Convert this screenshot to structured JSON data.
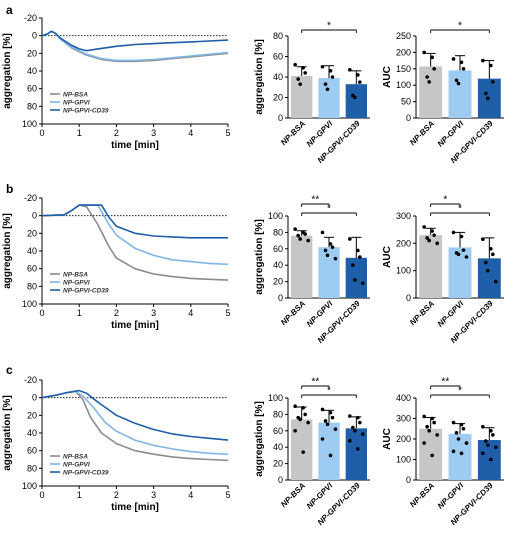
{
  "colors": {
    "bsa": "#8c8c8c",
    "gpvi": "#7fb6e8",
    "cd39": "#1f5ea8",
    "bar_bsa": "#c6c6c6",
    "bar_gpvi": "#9ecbf2",
    "bar_cd39": "#1f5ea8"
  },
  "chart_data": [
    {
      "panel": "a",
      "type": "line",
      "xlabel": "time [min]",
      "ylabel": "aggregation [%]",
      "xlim": [
        0,
        5
      ],
      "ylim": [
        -20,
        100
      ],
      "y_inverted": true,
      "xticks": [
        "0",
        "1",
        "2",
        "3",
        "4",
        "5"
      ],
      "yticks": [
        "-20",
        "0",
        "20",
        "40",
        "60",
        "80",
        "100"
      ],
      "legend": [
        "NP-BSA",
        "NP-GPVI",
        "NP-GPVI-CD39"
      ],
      "series": [
        {
          "name": "NP-BSA",
          "x": [
            0,
            0.15,
            0.25,
            0.35,
            0.5,
            0.8,
            1.2,
            1.6,
            2.0,
            2.5,
            3.0,
            3.5,
            4.0,
            4.5,
            5.0
          ],
          "y": [
            0,
            -2,
            -5,
            -3,
            4,
            14,
            22,
            27,
            29,
            29,
            28,
            26,
            24,
            22,
            20
          ]
        },
        {
          "name": "NP-GPVI",
          "x": [
            0,
            0.15,
            0.25,
            0.35,
            0.5,
            0.8,
            1.2,
            1.6,
            2.0,
            2.5,
            3.0,
            3.5,
            4.0,
            4.5,
            5.0
          ],
          "y": [
            0,
            -2,
            -5,
            -3,
            4,
            13,
            21,
            26,
            28,
            28,
            27,
            25,
            23,
            21,
            19
          ]
        },
        {
          "name": "NP-GPVI-CD39",
          "x": [
            0,
            0.15,
            0.25,
            0.35,
            0.5,
            0.8,
            1.0,
            1.2,
            1.5,
            2.0,
            2.5,
            3.0,
            3.5,
            4.0,
            4.5,
            5.0
          ],
          "y": [
            0,
            -2,
            -5,
            -3,
            3,
            11,
            15,
            17,
            15,
            12,
            10,
            9,
            8,
            7,
            6,
            5
          ]
        }
      ]
    },
    {
      "panel": "a",
      "type": "bar",
      "ylabel": "aggregation [%]",
      "ylim": [
        0,
        80
      ],
      "yticks": [
        "0",
        "20",
        "40",
        "60",
        "80"
      ],
      "categories": [
        "NP-BSA",
        "NP-GPVI",
        "NP-GPVI-CD39"
      ],
      "values": [
        41,
        39,
        33
      ],
      "errors": [
        9,
        12,
        13
      ],
      "points": [
        [
          52,
          49,
          44,
          38,
          33
        ],
        [
          50,
          46,
          40,
          33,
          28
        ],
        [
          47,
          42,
          35,
          22,
          20
        ]
      ],
      "significance": [
        {
          "from": 0,
          "to": 2,
          "label": "*"
        }
      ]
    },
    {
      "panel": "a",
      "type": "bar",
      "ylabel": "AUC",
      "ylim": [
        0,
        250
      ],
      "yticks": [
        "0",
        "50",
        "100",
        "150",
        "200",
        "250"
      ],
      "categories": [
        "NP-BSA",
        "NP-GPVI",
        "NP-GPVI-CD39"
      ],
      "values": [
        157,
        145,
        120
      ],
      "errors": [
        40,
        45,
        55
      ],
      "points": [
        [
          200,
          185,
          150,
          125,
          110
        ],
        [
          180,
          170,
          150,
          115,
          105
        ],
        [
          175,
          160,
          110,
          75,
          60
        ]
      ],
      "significance": [
        {
          "from": 0,
          "to": 2,
          "label": "*"
        }
      ]
    },
    {
      "panel": "b",
      "type": "line",
      "xlabel": "time [min]",
      "ylabel": "aggregation [%]",
      "xlim": [
        0,
        5
      ],
      "ylim": [
        -20,
        100
      ],
      "y_inverted": true,
      "xticks": [
        "0",
        "1",
        "2",
        "3",
        "4",
        "5"
      ],
      "yticks": [
        "-20",
        "0",
        "20",
        "40",
        "60",
        "80",
        "100"
      ],
      "legend": [
        "NP-BSA",
        "NP-GPVI",
        "NP-GPVI-CD39"
      ],
      "series": [
        {
          "name": "NP-BSA",
          "x": [
            0,
            0.6,
            0.8,
            1.0,
            1.2,
            1.5,
            1.8,
            2.0,
            2.5,
            3.0,
            3.5,
            4.0,
            4.5,
            5.0
          ],
          "y": [
            0,
            -1,
            -6,
            -12,
            -10,
            10,
            35,
            48,
            60,
            66,
            69,
            71,
            72,
            73
          ]
        },
        {
          "name": "NP-GPVI",
          "x": [
            0,
            0.6,
            0.8,
            1.0,
            1.5,
            1.8,
            2.0,
            2.5,
            3.0,
            3.5,
            4.0,
            4.5,
            5.0
          ],
          "y": [
            0,
            -1,
            -6,
            -12,
            -12,
            10,
            22,
            37,
            45,
            50,
            52,
            54,
            55
          ]
        },
        {
          "name": "NP-GPVI-CD39",
          "x": [
            0,
            0.6,
            0.8,
            1.0,
            1.6,
            1.8,
            2.0,
            2.5,
            3.0,
            3.5,
            4.0,
            4.5,
            5.0
          ],
          "y": [
            0,
            -1,
            -6,
            -12,
            -12,
            2,
            12,
            20,
            23,
            24,
            25,
            25,
            25
          ]
        }
      ]
    },
    {
      "panel": "b",
      "type": "bar",
      "ylabel": "aggregation [%]",
      "ylim": [
        0,
        100
      ],
      "yticks": [
        "0",
        "20",
        "40",
        "60",
        "80",
        "100"
      ],
      "categories": [
        "NP-BSA",
        "NP-GPVI",
        "NP-GPVI-CD39"
      ],
      "values": [
        76,
        62,
        49
      ],
      "errors": [
        6,
        12,
        25
      ],
      "points": [
        [
          84,
          80,
          78,
          76,
          72,
          70
        ],
        [
          80,
          66,
          62,
          58,
          52,
          48
        ],
        [
          72,
          58,
          50,
          40,
          22,
          18
        ]
      ],
      "significance": [
        {
          "from": 0,
          "to": 1,
          "label": "**"
        },
        {
          "from": 0,
          "to": 2,
          "label": "*"
        }
      ]
    },
    {
      "panel": "b",
      "type": "bar",
      "ylabel": "AUC",
      "ylim": [
        0,
        300
      ],
      "yticks": [
        "0",
        "100",
        "200",
        "300"
      ],
      "categories": [
        "NP-BSA",
        "NP-GPVI",
        "NP-GPVI-CD39"
      ],
      "values": [
        230,
        185,
        145
      ],
      "errors": [
        25,
        55,
        75
      ],
      "points": [
        [
          260,
          245,
          230,
          220,
          210,
          200
        ],
        [
          240,
          225,
          175,
          165,
          160,
          150
        ],
        [
          215,
          180,
          160,
          130,
          100,
          60
        ]
      ],
      "significance": [
        {
          "from": 0,
          "to": 1,
          "label": "*"
        },
        {
          "from": 0,
          "to": 2,
          "label": "*"
        }
      ]
    },
    {
      "panel": "c",
      "type": "line",
      "xlabel": "time [min]",
      "ylabel": "aggregation [%]",
      "xlim": [
        0,
        5
      ],
      "ylim": [
        -20,
        100
      ],
      "y_inverted": true,
      "xticks": [
        "0",
        "1",
        "2",
        "3",
        "4",
        "5"
      ],
      "yticks": [
        "-20",
        "0",
        "20",
        "40",
        "60",
        "80",
        "100"
      ],
      "legend": [
        "NP-BSA",
        "NP-GPVI",
        "NP-GPVI-CD39"
      ],
      "series": [
        {
          "name": "NP-BSA",
          "x": [
            0,
            0.4,
            0.7,
            0.9,
            1.1,
            1.3,
            1.6,
            2.0,
            2.5,
            3.0,
            3.5,
            4.0,
            4.5,
            5.0
          ],
          "y": [
            0,
            -3,
            -6,
            -7,
            2,
            22,
            40,
            52,
            60,
            64,
            67,
            69,
            70,
            71
          ]
        },
        {
          "name": "NP-GPVI",
          "x": [
            0,
            0.4,
            0.7,
            0.9,
            1.1,
            1.4,
            1.7,
            2.0,
            2.5,
            3.0,
            3.5,
            4.0,
            4.5,
            5.0
          ],
          "y": [
            0,
            -3,
            -6,
            -7,
            -2,
            12,
            28,
            38,
            48,
            54,
            58,
            61,
            63,
            64
          ]
        },
        {
          "name": "NP-GPVI-CD39",
          "x": [
            0,
            0.4,
            0.7,
            1.0,
            1.2,
            1.5,
            1.8,
            2.0,
            2.5,
            3.0,
            3.5,
            4.0,
            4.5,
            5.0
          ],
          "y": [
            0,
            -3,
            -6,
            -8,
            -5,
            5,
            14,
            20,
            29,
            36,
            41,
            44,
            46,
            48
          ]
        }
      ]
    },
    {
      "panel": "c",
      "type": "bar",
      "ylabel": "aggregation [%]",
      "ylim": [
        0,
        100
      ],
      "yticks": [
        "0",
        "20",
        "40",
        "60",
        "80",
        "100"
      ],
      "categories": [
        "NP-BSA",
        "NP-GPVI",
        "NP-GPVI-CD39"
      ],
      "values": [
        74,
        70,
        63
      ],
      "errors": [
        15,
        15,
        14
      ],
      "points": [
        [
          90,
          88,
          80,
          76,
          74,
          70,
          60,
          34
        ],
        [
          86,
          82,
          76,
          72,
          68,
          62,
          50,
          30
        ],
        [
          78,
          76,
          70,
          64,
          60,
          56,
          48,
          38
        ]
      ],
      "significance": [
        {
          "from": 0,
          "to": 1,
          "label": "**"
        },
        {
          "from": 0,
          "to": 2,
          "label": "*"
        }
      ]
    },
    {
      "panel": "c",
      "type": "bar",
      "ylabel": "AUC",
      "ylim": [
        0,
        400
      ],
      "yticks": [
        "0",
        "100",
        "200",
        "300",
        "400"
      ],
      "categories": [
        "NP-BSA",
        "NP-GPVI",
        "NP-GPVI-CD39"
      ],
      "values": [
        250,
        225,
        195
      ],
      "errors": [
        55,
        50,
        60
      ],
      "points": [
        [
          310,
          300,
          280,
          260,
          240,
          220,
          180,
          120
        ],
        [
          280,
          270,
          250,
          230,
          200,
          180,
          140,
          130
        ],
        [
          260,
          240,
          220,
          190,
          170,
          160,
          130,
          100
        ]
      ],
      "significance": [
        {
          "from": 0,
          "to": 1,
          "label": "**"
        },
        {
          "from": 0,
          "to": 2,
          "label": "*"
        }
      ]
    }
  ],
  "panel_labels": [
    "a",
    "b",
    "c"
  ]
}
